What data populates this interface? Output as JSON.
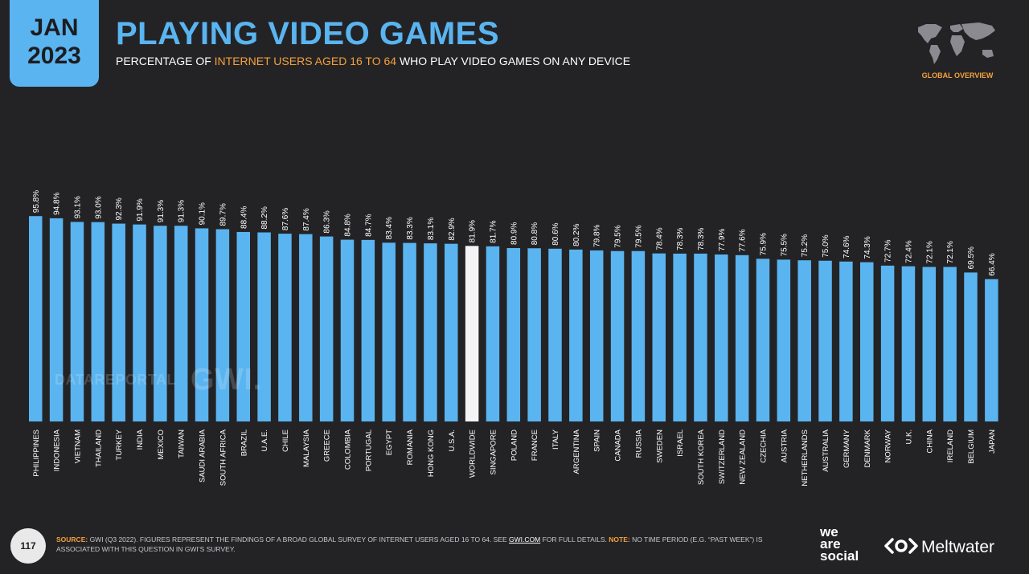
{
  "header": {
    "month": "JAN",
    "year": "2023",
    "title": "PLAYING VIDEO GAMES",
    "subtitle_pre": "PERCENTAGE OF ",
    "subtitle_highlight": "INTERNET USERS AGED 16 TO 64",
    "subtitle_post": " WHO PLAY VIDEO GAMES ON ANY DEVICE",
    "overview_label": "GLOBAL OVERVIEW"
  },
  "watermark": {
    "datareportal": "DATAREPORTAL",
    "gwi": "GWI."
  },
  "footer": {
    "page_number": "117",
    "source_label": "SOURCE:",
    "source_text": " GWI (Q3 2022). FIGURES REPRESENT THE FINDINGS OF A BROAD GLOBAL SURVEY OF INTERNET USERS AGED 16 TO 64. SEE ",
    "source_link": "GWI.COM",
    "source_text2": " FOR FULL DETAILS. ",
    "note_label": "NOTE:",
    "note_text": " NO TIME PERIOD (E.G. “PAST WEEK”) IS ASSOCIATED WITH THIS QUESTION IN GWI’S SURVEY.",
    "brand_we_are_social": "we\nare\nsocial",
    "brand_meltwater": "Meltwater"
  },
  "colors": {
    "bar": "#5ab4f0",
    "highlight_bar": "#f4f4f4",
    "accent": "#f5a13a",
    "background": "#232326"
  },
  "chart_data": {
    "type": "bar",
    "title": "PLAYING VIDEO GAMES",
    "categories": [
      "PHILIPPINES",
      "INDONESIA",
      "VIETNAM",
      "THAILAND",
      "TURKEY",
      "INDIA",
      "MEXICO",
      "TAIWAN",
      "SAUDI ARABIA",
      "SOUTH AFRICA",
      "BRAZIL",
      "U.A.E.",
      "CHILE",
      "MALAYSIA",
      "GREECE",
      "COLOMBIA",
      "PORTUGAL",
      "EGYPT",
      "ROMANIA",
      "HONG KONG",
      "U.S.A.",
      "WORLDWIDE",
      "SINGAPORE",
      "POLAND",
      "FRANCE",
      "ITALY",
      "ARGENTINA",
      "SPAIN",
      "CANADA",
      "RUSSIA",
      "SWEDEN",
      "ISRAEL",
      "SOUTH KOREA",
      "SWITZERLAND",
      "NEW ZEALAND",
      "CZECHIA",
      "AUSTRIA",
      "NETHERLANDS",
      "AUSTRALIA",
      "GERMANY",
      "DENMARK",
      "NORWAY",
      "U.K.",
      "CHINA",
      "IRELAND",
      "BELGIUM",
      "JAPAN"
    ],
    "values": [
      95.8,
      94.8,
      93.1,
      93.0,
      92.3,
      91.9,
      91.3,
      91.3,
      90.1,
      89.7,
      88.4,
      88.2,
      87.6,
      87.4,
      86.3,
      84.8,
      84.7,
      83.4,
      83.3,
      83.1,
      82.9,
      81.9,
      81.7,
      80.9,
      80.8,
      80.6,
      80.2,
      79.8,
      79.5,
      79.5,
      78.4,
      78.3,
      78.3,
      77.9,
      77.6,
      75.9,
      75.5,
      75.2,
      75.0,
      74.6,
      74.3,
      72.7,
      72.4,
      72.1,
      72.1,
      69.5,
      66.4
    ],
    "value_labels": [
      "95.8%",
      "94.8%",
      "93.1%",
      "93.0%",
      "92.3%",
      "91.9%",
      "91.3%",
      "91.3%",
      "90.1%",
      "89.7%",
      "88.4%",
      "88.2%",
      "87.6%",
      "87.4%",
      "86.3%",
      "84.8%",
      "84.7%",
      "83.4%",
      "83.3%",
      "83.1%",
      "82.9%",
      "81.9%",
      "81.7%",
      "80.9%",
      "80.8%",
      "80.6%",
      "80.2%",
      "79.8%",
      "79.5%",
      "79.5%",
      "78.4%",
      "78.3%",
      "78.3%",
      "77.9%",
      "77.6%",
      "75.9%",
      "75.5%",
      "75.2%",
      "75.0%",
      "74.6%",
      "74.3%",
      "72.7%",
      "72.4%",
      "72.1%",
      "72.1%",
      "69.5%",
      "66.4%"
    ],
    "highlight_category": "WORLDWIDE",
    "ylim": [
      0,
      100
    ],
    "grid": false,
    "legend": "none"
  }
}
